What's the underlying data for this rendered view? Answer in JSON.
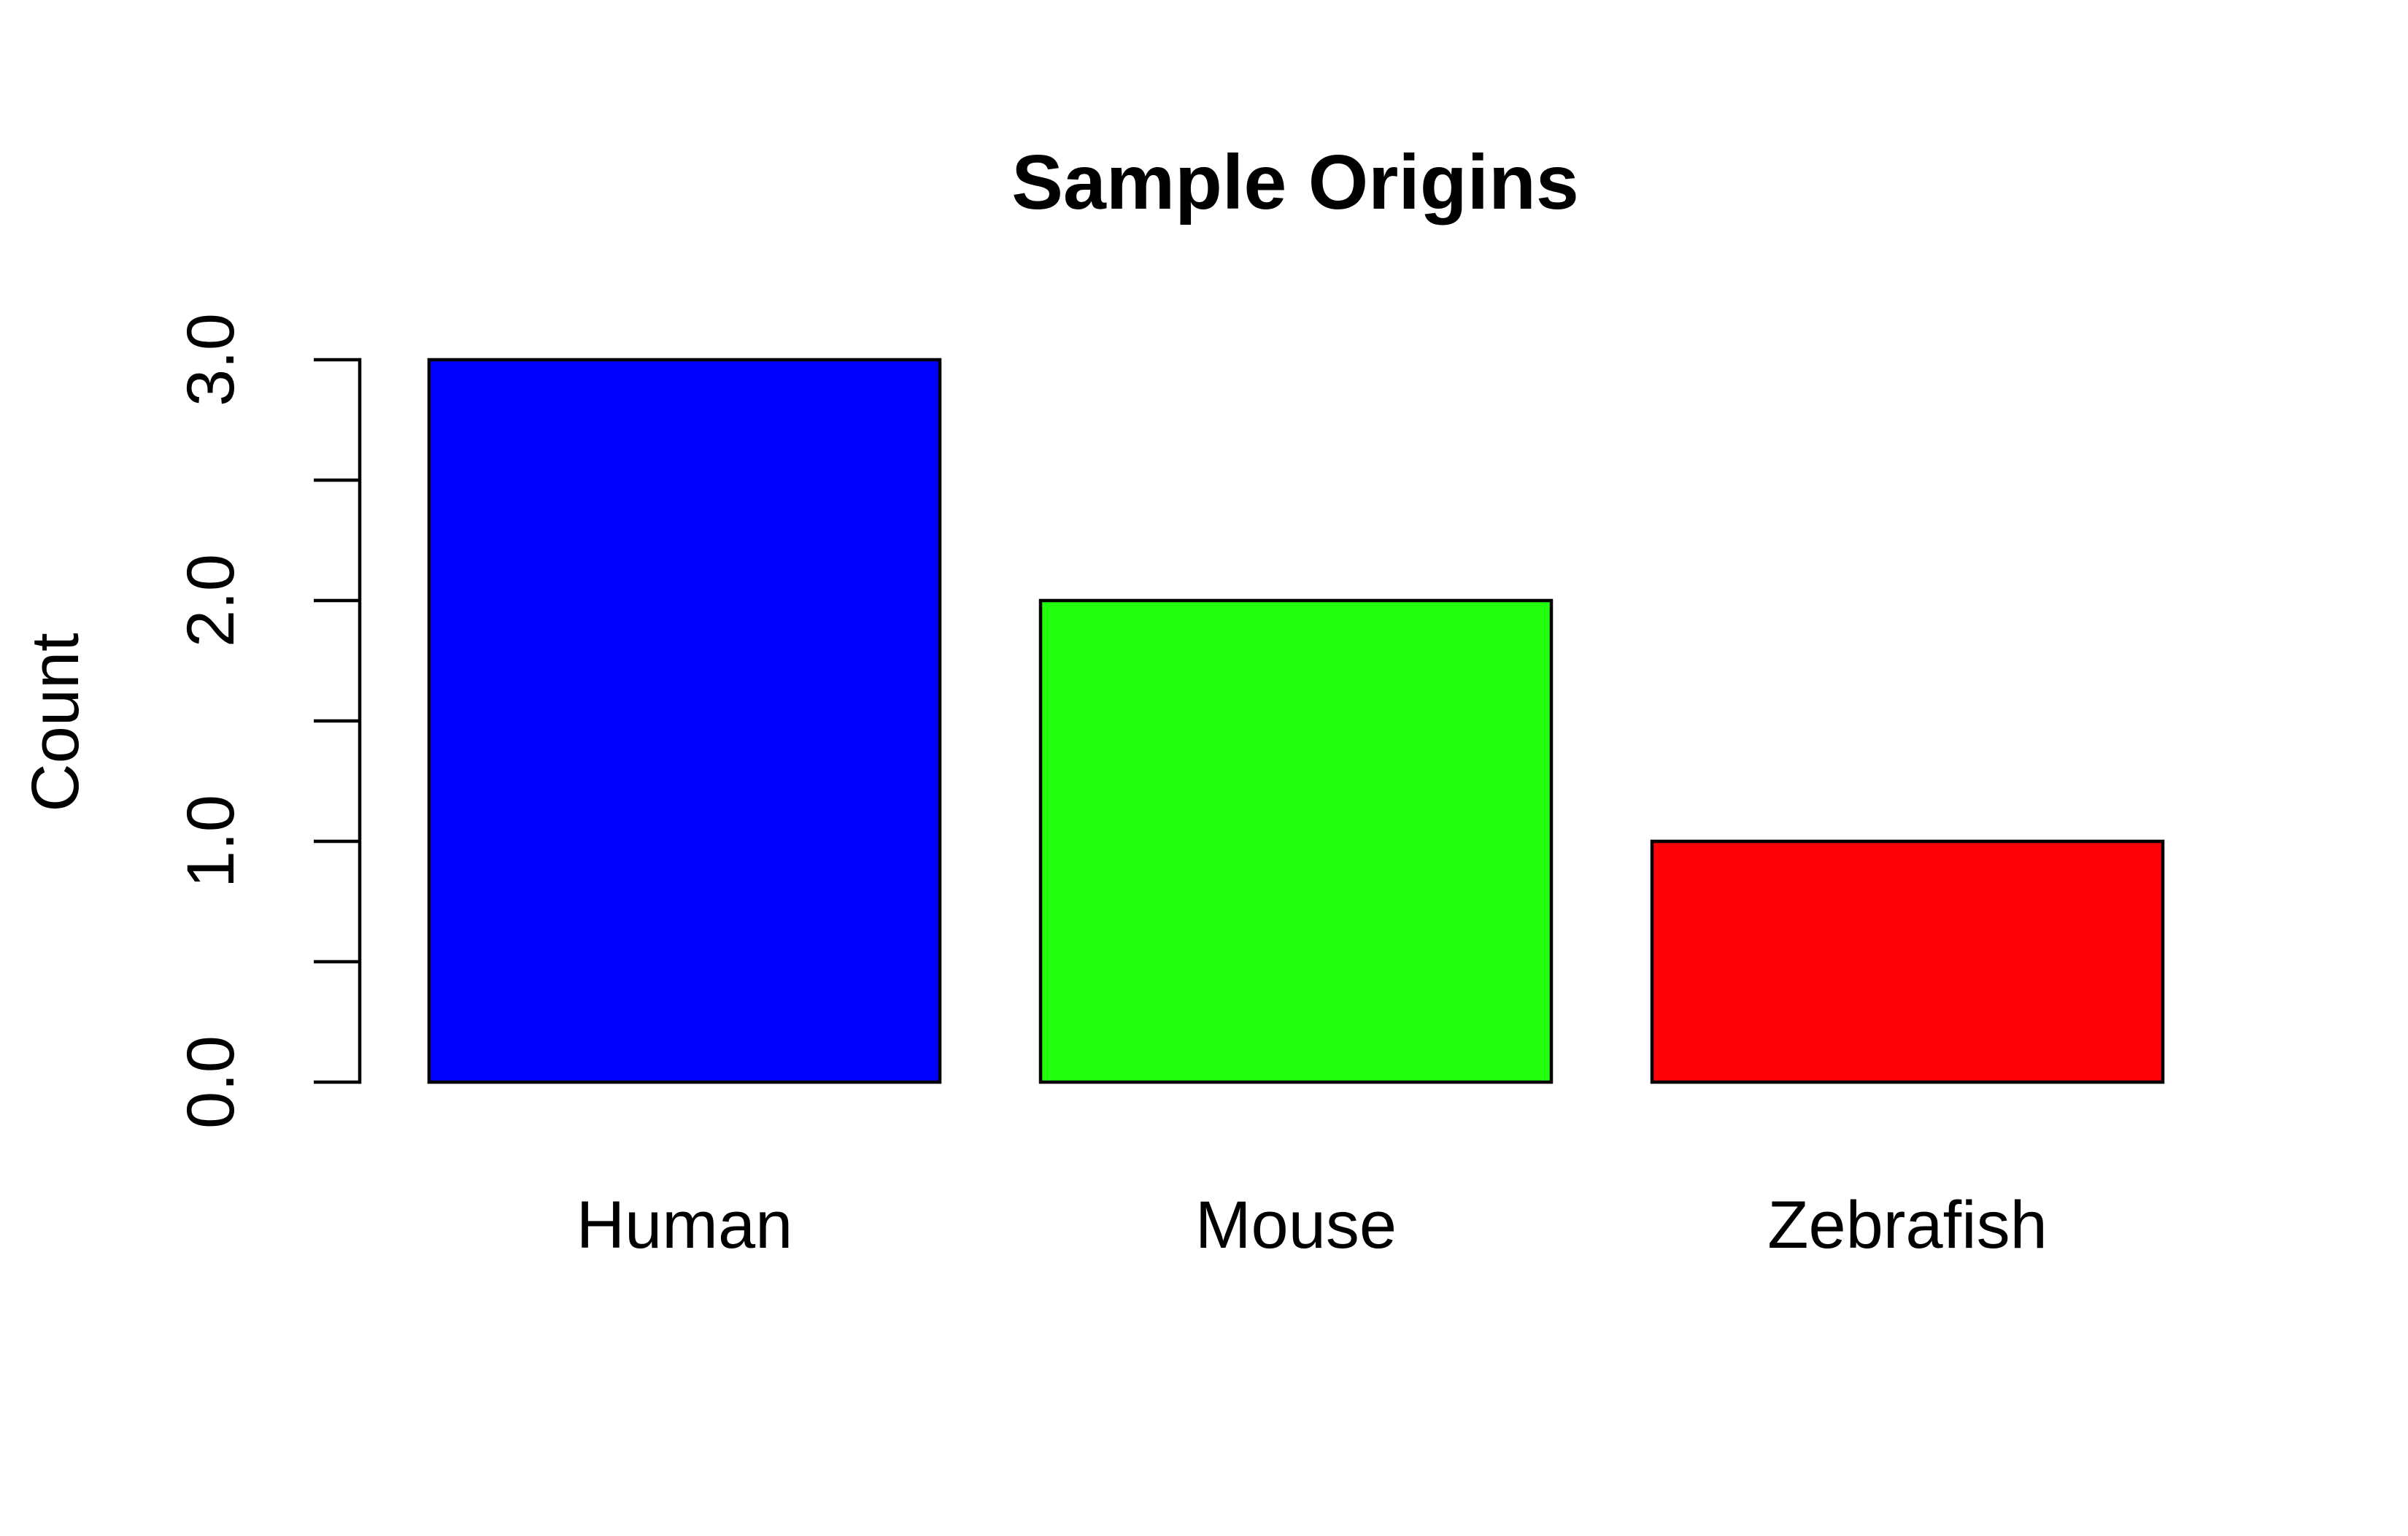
{
  "chart_data": {
    "type": "bar",
    "title": "Sample Origins",
    "xlabel": "",
    "ylabel": "Count",
    "categories": [
      "Human",
      "Mouse",
      "Zebrafish"
    ],
    "values": [
      3,
      2,
      1
    ],
    "colors": [
      "#0000FF",
      "#22FF0D",
      "#FF0208"
    ],
    "ylim": [
      0,
      3
    ],
    "yticks": [
      0,
      0.5,
      1,
      1.5,
      2,
      2.5,
      3
    ],
    "ytick_labels": [
      "0.0",
      "",
      "1.0",
      "",
      "2.0",
      "",
      "3.0"
    ],
    "grid": false,
    "legend": "none"
  }
}
